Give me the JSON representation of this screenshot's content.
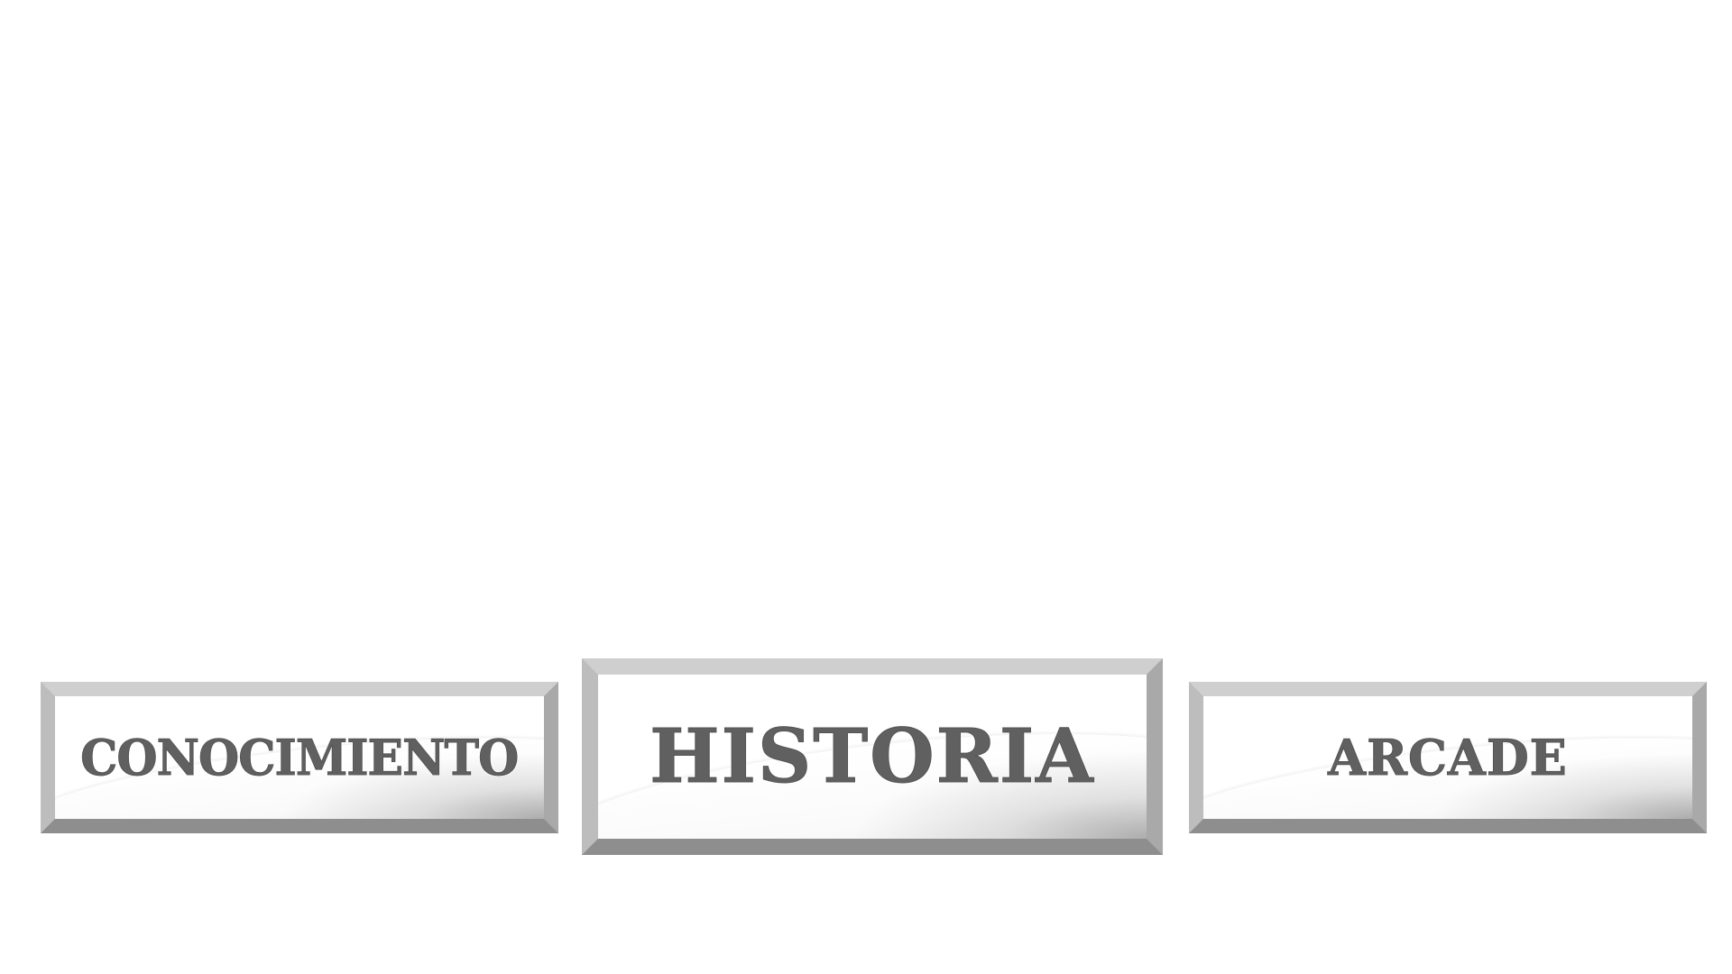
{
  "menu": {
    "buttons": [
      {
        "id": "conocimiento",
        "label": "CONOCIMIENTO"
      },
      {
        "id": "historia",
        "label": "HISTORIA"
      },
      {
        "id": "arcade",
        "label": "ARCADE"
      }
    ]
  },
  "colors": {
    "background": "#ffffff",
    "label_text": "#606060",
    "frame_light": "#d0d0d0",
    "frame_dark": "#5c5c5c"
  }
}
